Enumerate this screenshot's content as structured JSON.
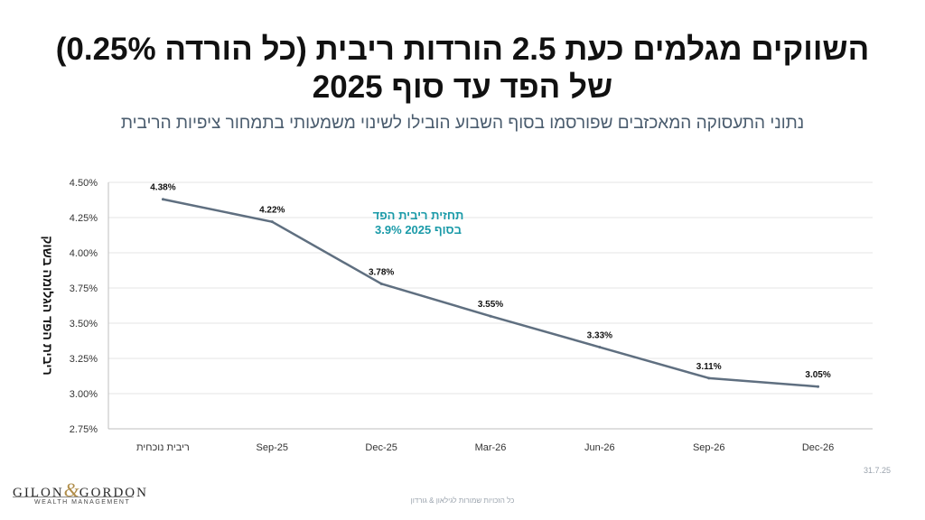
{
  "title_line1": "השווקים מגלמים כעת 2.5 הורדות ריבית (כל הורדה 0.25%)",
  "title_line2": "של הפד עד סוף  2025",
  "subtitle": "נתוני התעסוקה המאכזבים שפורסמו בסוף השבוע הובילו לשינוי משמעותי בתמחור ציפיות הריבית",
  "logo": {
    "main_left": "GILON",
    "amp": "&",
    "main_right": "GORDON",
    "sub": "WEALTH MANAGEMENT"
  },
  "date_stamp": "31.7.25",
  "footer": "כל הזכויות שמורות לגילאון & גורדון",
  "colors": {
    "line": "#5f6f80",
    "annotation": "#1a9aa8",
    "grid": "#e6e6e6"
  },
  "chart_data": {
    "type": "line",
    "categories": [
      "ריבית נוכחית",
      "Sep-25",
      "Dec-25",
      "Mar-26",
      "Jun-26",
      "Sep-26",
      "Dec-26"
    ],
    "series": [
      {
        "values": [
          4.38,
          4.22,
          3.78,
          3.55,
          3.33,
          3.11,
          3.05
        ]
      }
    ],
    "data_labels": [
      "4.38%",
      "4.22%",
      "3.78%",
      "3.55%",
      "3.33%",
      "3.11%",
      "3.05%"
    ],
    "ylabel": "ריבית הפד הגלומה בשוק",
    "xlabel": "",
    "ylim": [
      2.75,
      4.5
    ],
    "yticks": [
      2.75,
      3.0,
      3.25,
      3.5,
      3.75,
      4.0,
      4.25,
      4.5
    ],
    "ytick_labels": [
      "2.75%",
      "3.00%",
      "3.25%",
      "3.50%",
      "3.75%",
      "4.00%",
      "4.25%",
      "4.50%"
    ],
    "grid": true,
    "legend": "none",
    "annotation": {
      "line1": "תחזית ריבית הפד",
      "line2": "בסוף 2025 3.9%"
    }
  }
}
